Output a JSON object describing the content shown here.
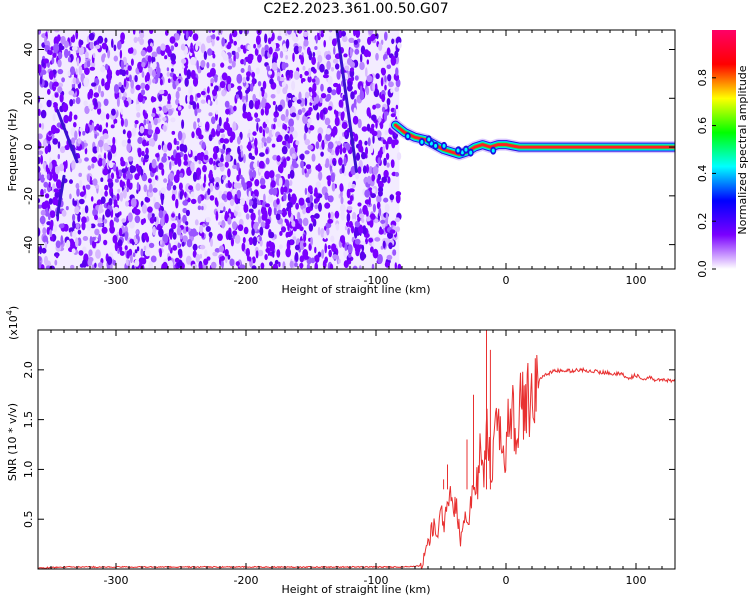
{
  "title": "C2E2.2023.361.00.50.G07",
  "chart_data": [
    {
      "type": "heatmap",
      "xlabel": "Height of straight line (km)",
      "ylabel": "Frequency (Hz)",
      "xlim": [
        -360,
        130
      ],
      "ylim": [
        -50,
        48
      ],
      "x_ticks": [
        -300,
        -200,
        -100,
        0,
        100
      ],
      "x_tick_labels": [
        "-300",
        "-200",
        "-100",
        "0",
        "100"
      ],
      "y_ticks": [
        -40,
        -20,
        0,
        20,
        40
      ],
      "y_tick_labels": [
        "-40",
        "-20",
        "0",
        "20",
        "40"
      ],
      "noise_region_x": [
        -360,
        -82
      ],
      "noise_colors": [
        "#7a00ff",
        "#5a00ee",
        "#9a55ff",
        "#bb88ff",
        "#d9bbff",
        "#ece0ff"
      ],
      "carrier_trace": {
        "x": [
          -85,
          -78,
          -70,
          -62,
          -55,
          -48,
          -42,
          -36,
          -30,
          -24,
          -18,
          -12,
          -6,
          0,
          10,
          30,
          60,
          90,
          130
        ],
        "freq": [
          9,
          6,
          4,
          3,
          1,
          -1,
          -2,
          -3,
          -2,
          0,
          1,
          0,
          1,
          1,
          0,
          0,
          0,
          0,
          0
        ]
      },
      "colorbar": {
        "label": "Normalized spectral amplitude",
        "range": [
          0,
          1
        ],
        "ticks": [
          0.0,
          0.2,
          0.4,
          0.6,
          0.8
        ],
        "tick_labels": [
          "0.0",
          "0.2",
          "0.4",
          "0.6",
          "0.8"
        ],
        "colors": [
          "#ffffff",
          "#7a00ff",
          "#0000ff",
          "#00ffff",
          "#00ff00",
          "#ffff00",
          "#ff0000",
          "#ff0066"
        ]
      }
    },
    {
      "type": "line",
      "xlabel": "Height of straight line (km)",
      "ylabel": "SNR (10 * v/v)",
      "multiplier_label": "(x10",
      "multiplier_exp": "4",
      "multiplier_close": ")",
      "xlim": [
        -360,
        130
      ],
      "ylim": [
        0,
        2.4
      ],
      "x_ticks": [
        -300,
        -200,
        -100,
        0,
        100
      ],
      "x_tick_labels": [
        "-300",
        "-200",
        "-100",
        "0",
        "100"
      ],
      "y_ticks": [
        0.5,
        1.0,
        1.5,
        2.0
      ],
      "y_tick_labels": [
        "0.5",
        "1.0",
        "1.5",
        "2.0"
      ],
      "color": "#e83030",
      "series": [
        {
          "x": [
            -360,
            -340,
            -300,
            -250,
            -200,
            -150,
            -100,
            -80,
            -65,
            -60,
            -56,
            -53,
            -50,
            -47,
            -44,
            -41,
            -38,
            -35,
            -32,
            -29,
            -26,
            -23,
            -20,
            -17,
            -14,
            -11,
            -8,
            -5,
            -2,
            1,
            4,
            7,
            10,
            14,
            18,
            22,
            26,
            30,
            35,
            40,
            50,
            60,
            70,
            80,
            90,
            95,
            100,
            105,
            110,
            115,
            120,
            130
          ],
          "y": [
            0.01,
            0.02,
            0.02,
            0.02,
            0.02,
            0.02,
            0.02,
            0.02,
            0.03,
            0.25,
            0.45,
            0.3,
            0.6,
            0.45,
            0.8,
            0.55,
            0.65,
            0.3,
            0.55,
            0.5,
            0.85,
            0.75,
            1.1,
            0.9,
            1.4,
            1.0,
            1.5,
            1.25,
            1.2,
            1.4,
            1.5,
            1.45,
            1.6,
            1.6,
            1.75,
            1.85,
            1.9,
            1.95,
            1.98,
            1.99,
            1.99,
            2.0,
            1.98,
            1.97,
            1.95,
            1.92,
            1.95,
            1.9,
            1.92,
            1.9,
            1.9,
            1.88
          ]
        }
      ]
    }
  ]
}
